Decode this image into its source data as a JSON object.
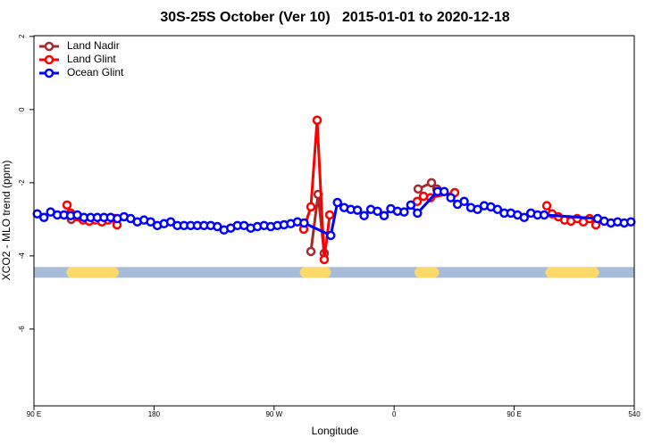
{
  "chart_data": {
    "type": "line",
    "title": "30S-25S October (Ver 10)   2015-01-01 to 2020-12-18",
    "x_label": "Longitude",
    "y_label": "XCO2 - MLO trend (ppm)",
    "xlim": [
      90,
      540
    ],
    "ylim": [
      -8.1,
      2.02
    ],
    "xticks": [
      {
        "value": 90,
        "label": "90 E"
      },
      180,
      {
        "value": 270,
        "label": "90 W"
      },
      {
        "value": 360,
        "label": "0"
      },
      {
        "value": 450,
        "label": "90 E"
      },
      540
    ],
    "yticks": [
      2,
      0,
      -2,
      -4,
      -6
    ],
    "legend": "topleft",
    "surface_band": {
      "y": -4.45,
      "ocean_color": "#a7bcd8",
      "land_color": "#fdd96b",
      "land": [
        [
          115,
          153
        ],
        [
          290,
          312
        ],
        [
          376,
          393
        ],
        [
          474,
          513
        ]
      ]
    },
    "series": [
      {
        "name": "Land Nadir",
        "color": "#a52a2a",
        "x": [
          118,
          123,
          200,
          297.6,
          303,
          307.6,
          350,
          378,
          388,
          392
        ],
        "values": [
          -3.0,
          -2.93,
          null,
          -3.88,
          -2.32,
          -3.93,
          null,
          -2.17,
          -2.0,
          -2.17
        ]
      },
      {
        "name": "Land Glint",
        "color": "#ff0000",
        "x": [
          114.8,
          117.5,
          122.1,
          126.8,
          131.5,
          136.2,
          140.9,
          145.6,
          150.3,
          152.3,
          200,
          292.2,
          297.6,
          302.3,
          307.6,
          311.7,
          350,
          377.3,
          382,
          387.3,
          405.4,
          440,
          474.4,
          478.4,
          483.1,
          487.8,
          492.5,
          497.2,
          501.8,
          506.5,
          511.2
        ],
        "values": [
          -2.61,
          -2.83,
          -2.93,
          -3.02,
          -3.05,
          -3.02,
          -3.07,
          -3.02,
          -2.98,
          -3.15,
          null,
          -3.27,
          -2.66,
          -0.29,
          -4.1,
          -2.88,
          null,
          -2.51,
          -2.37,
          -2.41,
          -2.27,
          null,
          -2.63,
          -2.85,
          -2.93,
          -3.02,
          -3.05,
          -2.98,
          -3.07,
          -2.98,
          -3.15
        ]
      },
      {
        "name": "Ocean Glint",
        "color": "#0000ff",
        "x": [
          92.5,
          97.5,
          102.5,
          107.5,
          112.5,
          117.5,
          122.5,
          127.5,
          132.5,
          137.5,
          142.5,
          147.5,
          152.5,
          157.5,
          162.5,
          167.5,
          172.5,
          177.5,
          182.5,
          187.5,
          192.5,
          197.5,
          202.5,
          207.5,
          212.5,
          217.5,
          222.5,
          227.5,
          232.5,
          237.5,
          242.5,
          247.5,
          252.5,
          257.5,
          262.5,
          267.5,
          272.5,
          277.5,
          282.5,
          287.5,
          292.5,
          312.5,
          317.5,
          322.5,
          327.5,
          332.5,
          337.5,
          342.5,
          347.5,
          352.5,
          357.5,
          362.5,
          367.5,
          372.5,
          377.5,
          392.5,
          397.5,
          402.5,
          407.5,
          412.5,
          417.5,
          422.5,
          427.5,
          432.5,
          437.5,
          442.5,
          447.5,
          452.5,
          457.5,
          462.5,
          467.5,
          472.5,
          512.5,
          517.5,
          522.5,
          527.5,
          532.5,
          537.5
        ],
        "values": [
          -2.85,
          -2.95,
          -2.8,
          -2.88,
          -2.88,
          -2.9,
          -2.88,
          -2.95,
          -2.95,
          -2.95,
          -2.95,
          -2.95,
          -2.98,
          -2.93,
          -2.98,
          -3.07,
          -3.02,
          -3.07,
          -3.17,
          -3.12,
          -3.07,
          -3.17,
          -3.17,
          -3.17,
          -3.17,
          -3.17,
          -3.17,
          -3.2,
          -3.29,
          -3.24,
          -3.17,
          -3.17,
          -3.24,
          -3.2,
          -3.17,
          -3.2,
          -3.17,
          -3.15,
          -3.12,
          -3.07,
          -3.1,
          -3.44,
          -2.54,
          -2.68,
          -2.73,
          -2.75,
          -2.9,
          -2.73,
          -2.78,
          -2.9,
          -2.71,
          -2.78,
          -2.8,
          -2.61,
          -2.83,
          -2.24,
          -2.24,
          -2.41,
          -2.59,
          -2.51,
          -2.68,
          -2.73,
          -2.63,
          -2.66,
          -2.73,
          -2.83,
          -2.83,
          -2.88,
          -2.95,
          -2.83,
          -2.88,
          -2.88,
          -2.98,
          -3.05,
          -3.1,
          -3.07,
          -3.1,
          -3.07
        ]
      }
    ]
  }
}
